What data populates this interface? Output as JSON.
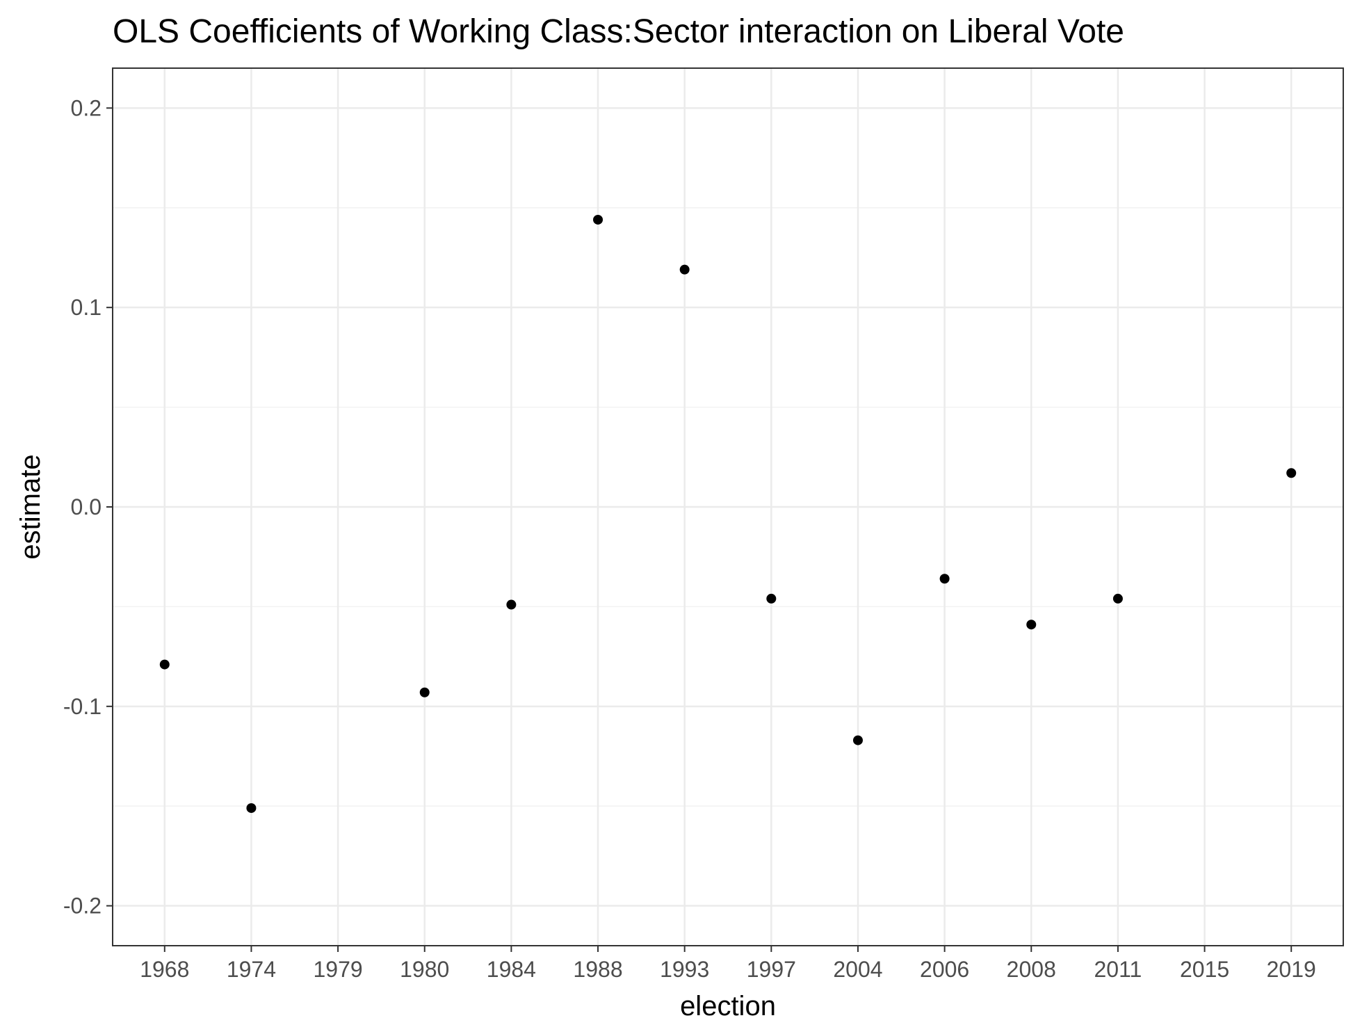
{
  "chart_data": {
    "type": "scatter",
    "title": "OLS Coefficients of Working Class:Sector interaction on Liberal Vote",
    "xlabel": "election",
    "ylabel": "estimate",
    "x_axis_type": "categorical",
    "categories": [
      "1968",
      "1974",
      "1979",
      "1980",
      "1984",
      "1988",
      "1993",
      "1997",
      "2004",
      "2006",
      "2008",
      "2011",
      "2015",
      "2019"
    ],
    "series": [
      {
        "points": [
          {
            "x": "1968",
            "y": -0.079
          },
          {
            "x": "1974",
            "y": -0.151
          },
          {
            "x": "1980",
            "y": -0.093
          },
          {
            "x": "1984",
            "y": -0.049
          },
          {
            "x": "1988",
            "y": 0.144
          },
          {
            "x": "1993",
            "y": 0.119
          },
          {
            "x": "1997",
            "y": -0.046
          },
          {
            "x": "2004",
            "y": -0.117
          },
          {
            "x": "2006",
            "y": -0.036
          },
          {
            "x": "2008",
            "y": -0.059
          },
          {
            "x": "2011",
            "y": -0.046
          },
          {
            "x": "2019",
            "y": 0.017
          }
        ]
      }
    ],
    "ylim": [
      -0.22,
      0.22
    ],
    "y_ticks": [
      -0.2,
      -0.1,
      0.0,
      0.1,
      0.2
    ],
    "y_tick_labels": [
      "-0.2",
      "-0.1",
      "0.0",
      "0.1",
      "0.2"
    ],
    "grid": true,
    "legend": "none",
    "colors": {
      "point": "#000000",
      "grid_major": "#ebebeb",
      "grid_minor": "#f2f2f2",
      "panel_border": "#333333",
      "tick_text": "#4d4d4d",
      "background": "#ffffff"
    }
  }
}
